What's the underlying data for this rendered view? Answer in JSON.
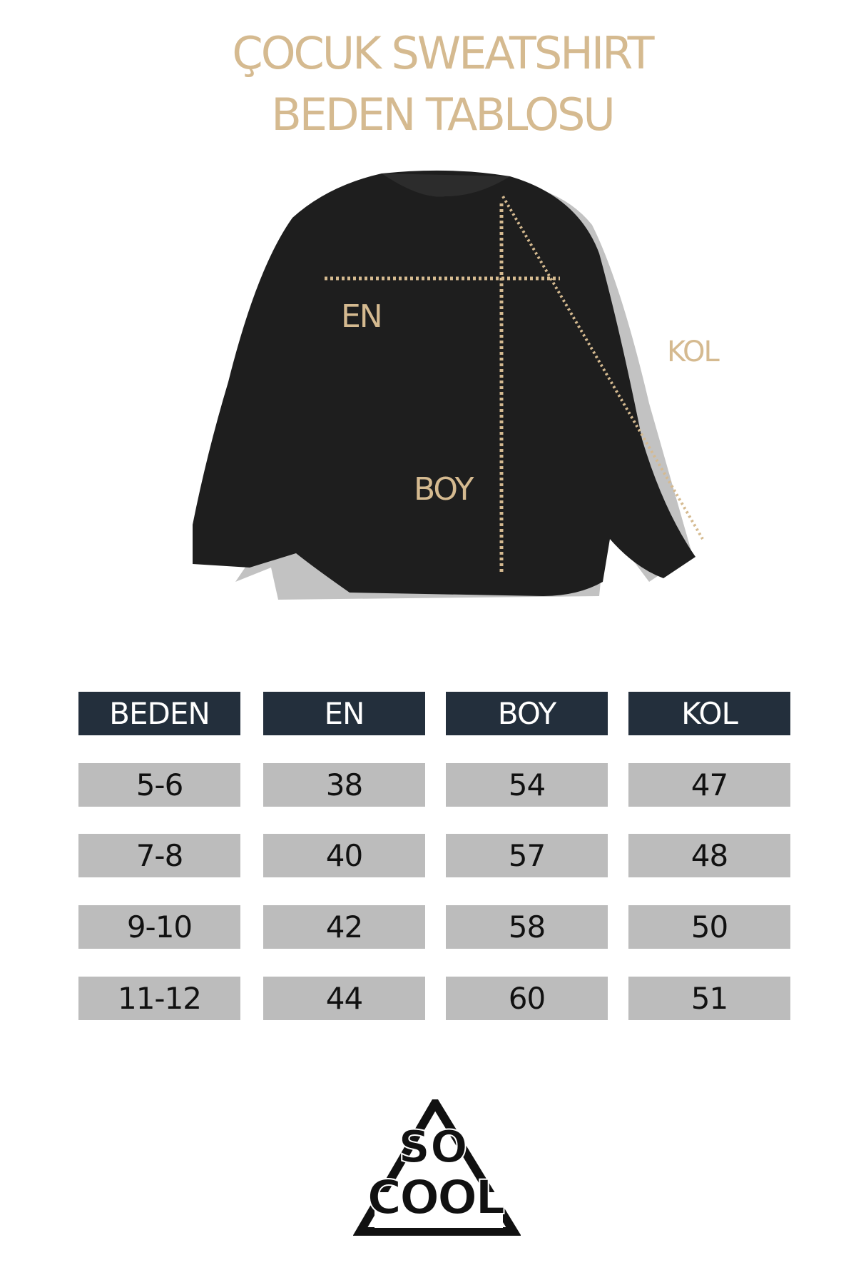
{
  "title": {
    "line1": "ÇOCUK SWEATSHIRT",
    "line2": "BEDEN TABLOSU"
  },
  "diagram": {
    "labels": {
      "en": "EN",
      "boy": "BOY",
      "kol": "KOL"
    }
  },
  "table": {
    "headers": [
      "BEDEN",
      "EN",
      "BOY",
      "KOL"
    ],
    "rows": [
      [
        "5-6",
        "38",
        "54",
        "47"
      ],
      [
        "7-8",
        "40",
        "57",
        "48"
      ],
      [
        "9-10",
        "42",
        "58",
        "50"
      ],
      [
        "11-12",
        "44",
        "60",
        "51"
      ]
    ]
  },
  "logo": {
    "text": "SO COOL"
  },
  "colors": {
    "accent": "#d5ba90",
    "header": "#232f3c",
    "cell": "#bcbcbc"
  }
}
